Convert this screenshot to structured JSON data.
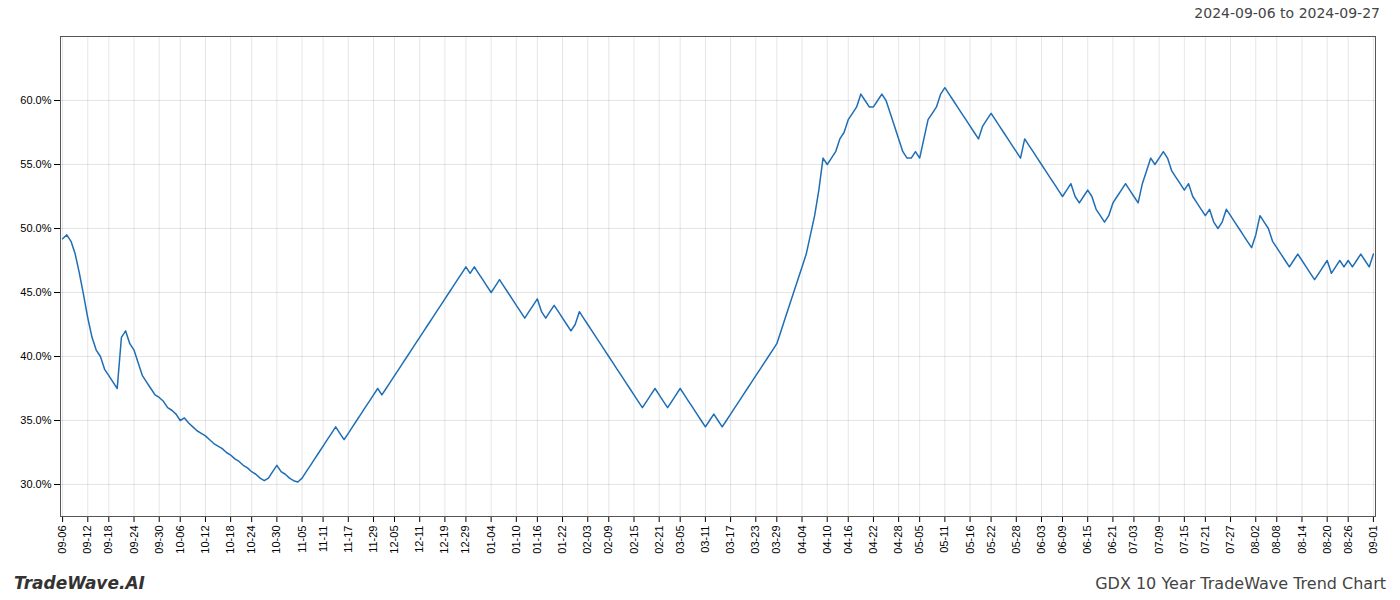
{
  "chart_data": {
    "type": "line",
    "title": "GDX 10 Year TradeWave Trend Chart",
    "subtitle": "2024-09-06 to 2024-09-27",
    "annotations": [
      "TradeWave.AI"
    ],
    "color": "#1f6eb5",
    "grid": true,
    "ylim": [
      27.5,
      65.0
    ],
    "yticks": [
      {
        "value": 30.0,
        "label": "30.0%"
      },
      {
        "value": 35.0,
        "label": "35.0%"
      },
      {
        "value": 40.0,
        "label": "40.0%"
      },
      {
        "value": 45.0,
        "label": "45.0%"
      },
      {
        "value": 50.0,
        "label": "50.0%"
      },
      {
        "value": 55.0,
        "label": "55.0%"
      },
      {
        "value": 60.0,
        "label": "60.0%"
      }
    ],
    "categories": [
      "09-06",
      null,
      null,
      null,
      null,
      null,
      "09-12",
      null,
      null,
      null,
      null,
      "09-18",
      null,
      null,
      null,
      null,
      null,
      "09-24",
      null,
      null,
      null,
      null,
      null,
      "09-30",
      null,
      null,
      null,
      null,
      "10-06",
      null,
      null,
      null,
      null,
      null,
      "10-12",
      null,
      null,
      null,
      null,
      null,
      "10-18",
      null,
      null,
      null,
      null,
      "10-24",
      null,
      null,
      null,
      null,
      null,
      "10-30",
      null,
      null,
      null,
      null,
      null,
      "11-05",
      null,
      null,
      null,
      null,
      "11-11",
      null,
      null,
      null,
      null,
      null,
      "11-17",
      null,
      null,
      null,
      null,
      null,
      "11-29",
      null,
      null,
      null,
      null,
      "12-05",
      null,
      null,
      null,
      null,
      null,
      "12-11",
      null,
      null,
      null,
      null,
      null,
      "12-19",
      null,
      null,
      null,
      null,
      "12-29",
      null,
      null,
      null,
      null,
      null,
      "01-04",
      null,
      null,
      null,
      null,
      null,
      "01-10",
      null,
      null,
      null,
      null,
      "01-16",
      null,
      null,
      null,
      null,
      null,
      "01-22",
      null,
      null,
      null,
      null,
      null,
      "02-03",
      null,
      null,
      null,
      null,
      "02-09",
      null,
      null,
      null,
      null,
      null,
      "02-15",
      null,
      null,
      null,
      null,
      null,
      "02-21",
      null,
      null,
      null,
      null,
      "03-05",
      null,
      null,
      null,
      null,
      null,
      "03-11",
      null,
      null,
      null,
      null,
      null,
      "03-17",
      null,
      null,
      null,
      null,
      null,
      "03-23",
      null,
      null,
      null,
      null,
      "03-29",
      null,
      null,
      null,
      null,
      null,
      "04-04",
      null,
      null,
      null,
      null,
      null,
      "04-10",
      null,
      null,
      null,
      null,
      "04-16",
      null,
      null,
      null,
      null,
      null,
      "04-22",
      null,
      null,
      null,
      null,
      null,
      "04-28",
      null,
      null,
      null,
      null,
      "05-05",
      null,
      null,
      null,
      null,
      null,
      "05-11",
      null,
      null,
      null,
      null,
      null,
      "05-16",
      null,
      null,
      null,
      null,
      "05-22",
      null,
      null,
      null,
      null,
      null,
      "05-28",
      null,
      null,
      null,
      null,
      null,
      "06-03",
      null,
      null,
      null,
      null,
      "06-09",
      null,
      null,
      null,
      null,
      null,
      "06-15",
      null,
      null,
      null,
      null,
      null,
      "06-21",
      null,
      null,
      null,
      null,
      "07-03",
      null,
      null,
      null,
      null,
      null,
      "07-09",
      null,
      null,
      null,
      null,
      null,
      "07-15",
      null,
      null,
      null,
      null,
      "07-21",
      null,
      null,
      null,
      null,
      null,
      "07-27",
      null,
      null,
      null,
      null,
      null,
      "08-02",
      null,
      null,
      null,
      null,
      "08-08",
      null,
      null,
      null,
      null,
      null,
      "08-14",
      null,
      null,
      null,
      null,
      null,
      "08-20",
      null,
      null,
      null,
      null,
      "08-26",
      null,
      null,
      null,
      null,
      null,
      "09-01"
    ],
    "values": [
      49.2,
      49.5,
      49.0,
      48.0,
      46.5,
      44.8,
      43.0,
      41.5,
      40.5,
      40.0,
      39.0,
      38.5,
      38.0,
      37.5,
      41.5,
      42.0,
      41.0,
      40.5,
      39.5,
      38.5,
      38.0,
      37.5,
      37.0,
      36.8,
      36.5,
      36.0,
      35.8,
      35.5,
      35.0,
      35.2,
      34.8,
      34.5,
      34.2,
      34.0,
      33.8,
      33.5,
      33.2,
      33.0,
      32.8,
      32.5,
      32.3,
      32.0,
      31.8,
      31.5,
      31.3,
      31.0,
      30.8,
      30.5,
      30.3,
      30.5,
      31.0,
      31.5,
      31.0,
      30.8,
      30.5,
      30.3,
      30.2,
      30.5,
      31.0,
      31.5,
      32.0,
      32.5,
      33.0,
      33.5,
      34.0,
      34.5,
      34.0,
      33.5,
      34.0,
      34.5,
      35.0,
      35.5,
      36.0,
      36.5,
      37.0,
      37.5,
      37.0,
      37.5,
      38.0,
      38.5,
      39.0,
      39.5,
      40.0,
      40.5,
      41.0,
      41.5,
      42.0,
      42.5,
      43.0,
      43.5,
      44.0,
      44.5,
      45.0,
      45.5,
      46.0,
      46.5,
      47.0,
      46.5,
      47.0,
      46.5,
      46.0,
      45.5,
      45.0,
      45.5,
      46.0,
      45.5,
      45.0,
      44.5,
      44.0,
      43.5,
      43.0,
      43.5,
      44.0,
      44.5,
      43.5,
      43.0,
      43.5,
      44.0,
      43.5,
      43.0,
      42.5,
      42.0,
      42.5,
      43.5,
      43.0,
      42.5,
      42.0,
      41.5,
      41.0,
      40.5,
      40.0,
      39.5,
      39.0,
      38.5,
      38.0,
      37.5,
      37.0,
      36.5,
      36.0,
      36.5,
      37.0,
      37.5,
      37.0,
      36.5,
      36.0,
      36.5,
      37.0,
      37.5,
      37.0,
      36.5,
      36.0,
      35.5,
      35.0,
      34.5,
      35.0,
      35.5,
      35.0,
      34.5,
      35.0,
      35.5,
      36.0,
      36.5,
      37.0,
      37.5,
      38.0,
      38.5,
      39.0,
      39.5,
      40.0,
      40.5,
      41.0,
      42.0,
      43.0,
      44.0,
      45.0,
      46.0,
      47.0,
      48.0,
      49.5,
      51.0,
      53.0,
      55.5,
      55.0,
      55.5,
      56.0,
      57.0,
      57.5,
      58.5,
      59.0,
      59.5,
      60.5,
      60.0,
      59.5,
      59.5,
      60.0,
      60.5,
      60.0,
      59.0,
      58.0,
      57.0,
      56.0,
      55.5,
      55.5,
      56.0,
      55.5,
      57.0,
      58.5,
      59.0,
      59.5,
      60.5,
      61.0,
      60.5,
      60.0,
      59.5,
      59.0,
      58.5,
      58.0,
      57.5,
      57.0,
      58.0,
      58.5,
      59.0,
      58.5,
      58.0,
      57.5,
      57.0,
      56.5,
      56.0,
      55.5,
      57.0,
      56.5,
      56.0,
      55.5,
      55.0,
      54.5,
      54.0,
      53.5,
      53.0,
      52.5,
      53.0,
      53.5,
      52.5,
      52.0,
      52.5,
      53.0,
      52.5,
      51.5,
      51.0,
      50.5,
      51.0,
      52.0,
      52.5,
      53.0,
      53.5,
      53.0,
      52.5,
      52.0,
      53.5,
      54.5,
      55.5,
      55.0,
      55.5,
      56.0,
      55.5,
      54.5,
      54.0,
      53.5,
      53.0,
      53.5,
      52.5,
      52.0,
      51.5,
      51.0,
      51.5,
      50.5,
      50.0,
      50.5,
      51.5,
      51.0,
      50.5,
      50.0,
      49.5,
      49.0,
      48.5,
      49.5,
      51.0,
      50.5,
      50.0,
      49.0,
      48.5,
      48.0,
      47.5,
      47.0,
      47.5,
      48.0,
      47.5,
      47.0,
      46.5,
      46.0,
      46.5,
      47.0,
      47.5,
      46.5,
      47.0,
      47.5,
      47.0,
      47.5,
      47.0,
      47.5,
      48.0,
      47.5,
      47.0,
      48.0
    ]
  }
}
